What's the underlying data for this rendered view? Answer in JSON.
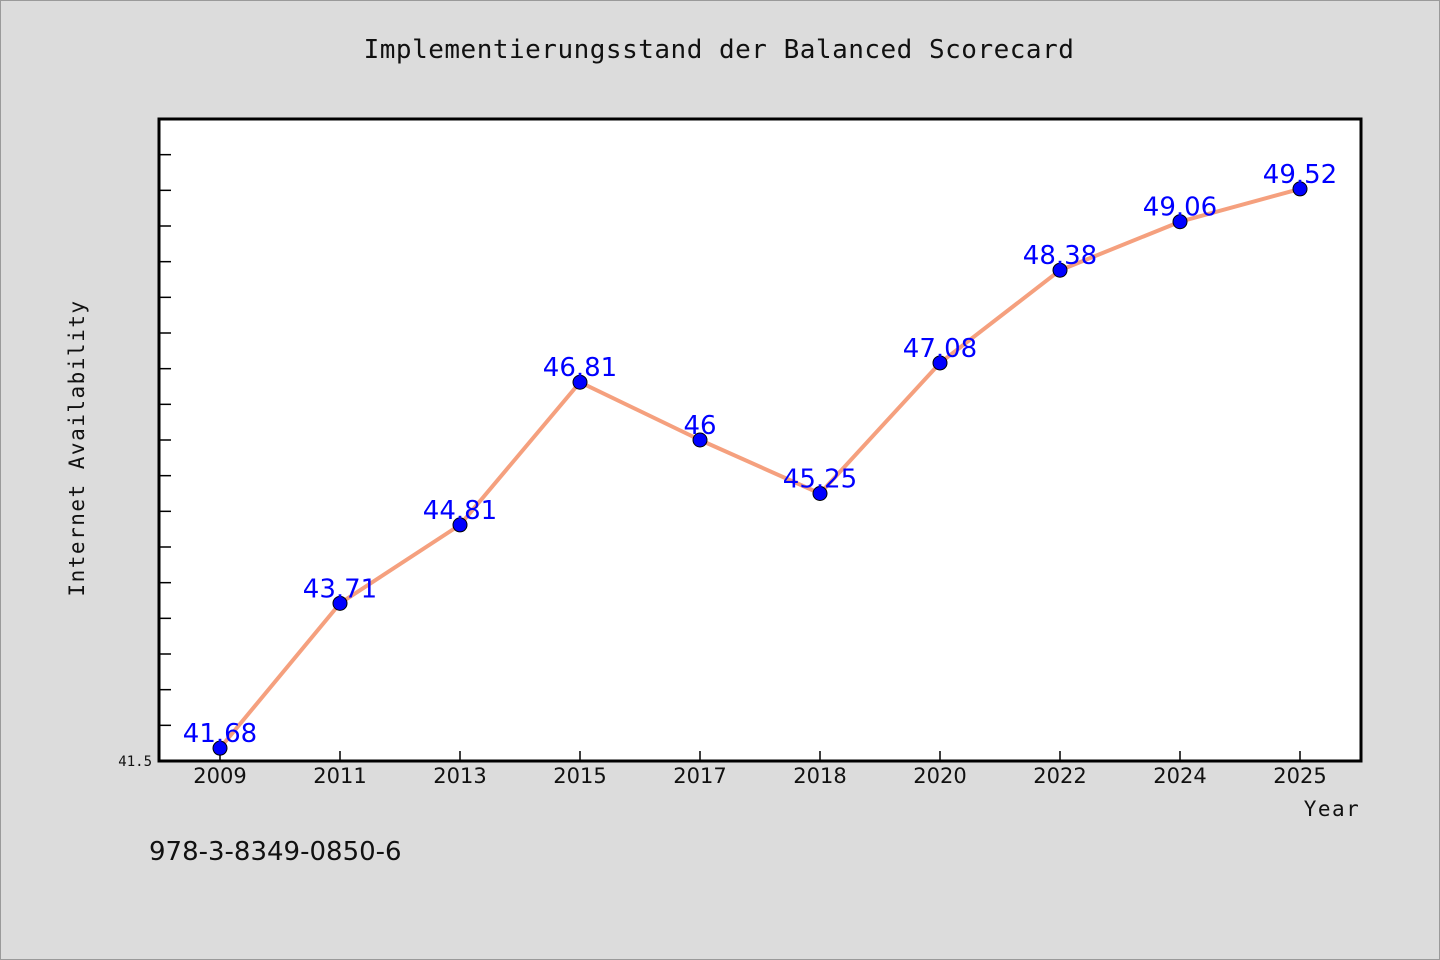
{
  "chart_data": {
    "type": "line",
    "title": "Implementierungsstand der Balanced Scorecard",
    "xlabel": "Year",
    "ylabel": "Internet Availability",
    "categories": [
      "2009",
      "2011",
      "2013",
      "2015",
      "2017",
      "2018",
      "2020",
      "2022",
      "2024",
      "2025"
    ],
    "series": [
      {
        "values": [
          41.68,
          43.71,
          44.81,
          46.81,
          46,
          45.25,
          47.08,
          48.38,
          49.06,
          49.52
        ]
      }
    ],
    "data_labels": [
      "41.68",
      "43.71",
      "44.81",
      "46.81",
      "46",
      "45.25",
      "47.08",
      "48.38",
      "49.06",
      "49.52"
    ],
    "ylim": [
      41.5,
      50.5
    ],
    "y_tick_labels": [
      "41.5"
    ],
    "grid": false,
    "legend": "none",
    "colors": {
      "line": "#f5a07e",
      "marker": "#0000ff",
      "label": "#0000ff",
      "plot_bg": "#ffffff",
      "page_bg": "#dcdcdc"
    }
  },
  "footer": {
    "isbn": "978-3-8349-0850-6"
  }
}
